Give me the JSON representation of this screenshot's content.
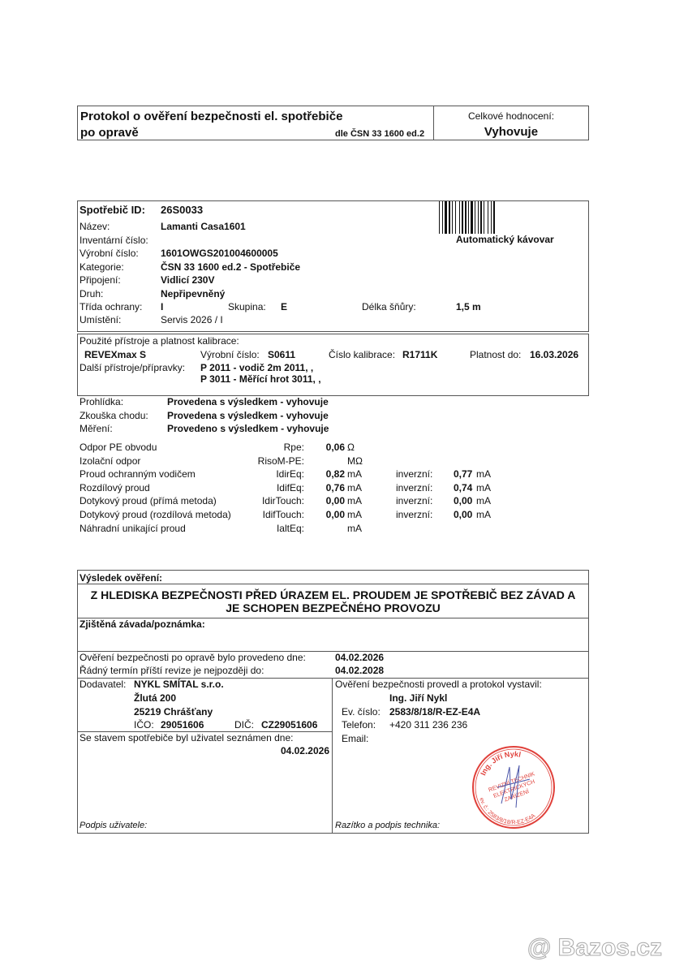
{
  "header": {
    "title_line1": "Protokol o ověření bezpečnosti el. spotřebiče",
    "title_line2": "po opravě",
    "norm": "dle ČSN 33 1600 ed.2",
    "rating_label": "Celkové hodnocení:",
    "rating_value": "Vyhovuje"
  },
  "device": {
    "id_label": "Spotřebič ID:",
    "id_value": "26S0033",
    "rows": [
      {
        "label": "Název:",
        "value": "Lamanti Casa1601"
      },
      {
        "label": "Inventární číslo:",
        "value": ""
      },
      {
        "label": "Výrobní číslo:",
        "value": "1601OWGS201004600005"
      },
      {
        "label": "Kategorie:",
        "value": "ČSN 33 1600 ed.2 - Spotřebiče"
      },
      {
        "label": "Připojení:",
        "value": "Vidlicí 230V"
      },
      {
        "label": "Druh:",
        "value": "Nepřipevněný"
      }
    ],
    "class_label": "Třída ochrany:",
    "class_value": "I",
    "group_label": "Skupina:",
    "group_value": "E",
    "cord_label": "Délka šňůry:",
    "cord_value": "1,5 m",
    "location_label": "Umístění:",
    "location_value": "Servis 2026 / I",
    "type": "Automatický kávovar"
  },
  "instruments": {
    "title": "Použité přístroje a platnost kalibrace:",
    "name": "REVEXmax S",
    "serial_label": "Výrobní číslo:",
    "serial_value": "S0611",
    "calib_label": "Číslo kalibrace:",
    "calib_value": "R1711K",
    "valid_label": "Platnost do:",
    "valid_value": "16.03.2026",
    "other_label": "Další přístroje/přípravky:",
    "other": [
      "P 2011 - vodič 2m 2011, ,",
      "P 3011 - Měřící hrot 3011, ,"
    ]
  },
  "checks": [
    {
      "label": "Prohlídka:",
      "value": "Provedena s výsledkem - vyhovuje"
    },
    {
      "label": "Zkouška chodu:",
      "value": "Provedena s výsledkem - vyhovuje"
    },
    {
      "label": "Měření:",
      "value": "Provedeno s výsledkem - vyhovuje"
    }
  ],
  "measurements": [
    {
      "label": "Odpor PE obvodu",
      "symbol": "Rpe:",
      "value": "0,06",
      "unit": "Ω",
      "inv_label": "",
      "inv_value": "",
      "inv_unit": ""
    },
    {
      "label": "Izolační odpor",
      "symbol": "RisoM-PE:",
      "value": "",
      "unit": "MΩ",
      "inv_label": "",
      "inv_value": "",
      "inv_unit": ""
    },
    {
      "label": "Proud ochranným vodičem",
      "symbol": "IdirEq:",
      "value": "0,82",
      "unit": "mA",
      "inv_label": "inverzní:",
      "inv_value": "0,77",
      "inv_unit": "mA"
    },
    {
      "label": "Rozdílový proud",
      "symbol": "IdifEq:",
      "value": "0,76",
      "unit": "mA",
      "inv_label": "inverzní:",
      "inv_value": "0,74",
      "inv_unit": "mA"
    },
    {
      "label": "Dotykový proud (přímá metoda)",
      "symbol": "IdirTouch:",
      "value": "0,00",
      "unit": "mA",
      "inv_label": "inverzní:",
      "inv_value": "0,00",
      "inv_unit": "mA"
    },
    {
      "label": "Dotykový proud (rozdílová metoda)",
      "symbol": "IdifTouch:",
      "value": "0,00",
      "unit": "mA",
      "inv_label": "inverzní:",
      "inv_value": "0,00",
      "inv_unit": "mA"
    },
    {
      "label": "Náhradní unikající proud",
      "symbol": "IaltEq:",
      "value": "",
      "unit": "mA",
      "inv_label": "",
      "inv_value": "",
      "inv_unit": ""
    }
  ],
  "result": {
    "title": "Výsledek ověření:",
    "line1": "Z HLEDISKA BEZPEČNOSTI PŘED ÚRAZEM EL. PROUDEM JE SPOTŘEBIČ BEZ ZÁVAD A",
    "line2": "JE SCHOPEN BEZPEČNÉHO PROVOZU",
    "defect_label": "Zjištěná závada/poznámka:",
    "done_label": "Ověření bezpečnosti po opravě bylo provedeno dne:",
    "done_value": "04.02.2026",
    "next_label": "Řádný termín příští revize je nejpozději do:",
    "next_value": "04.02.2028"
  },
  "supplier": {
    "label": "Dodavatel:",
    "name": "NYKL SMÍTAL s.r.o.",
    "street": "Žlutá 200",
    "city": "25219  Chrášťany",
    "ico_label": "IČO:",
    "ico": "29051606",
    "dic_label": "DIČ:",
    "dic": "CZ29051606"
  },
  "user": {
    "label": "Se stavem spotřebiče byl uživatel seznámen dne:",
    "date": "04.02.2026",
    "sign": "Podpis uživatele:"
  },
  "technician": {
    "label": "Ověření bezpečnosti provedl a protokol vystavil:",
    "name": "Ing. Jiří Nykl",
    "ev_label": "Ev. číslo:",
    "ev": "2583/8/18/R-EZ-E4A",
    "phone_label": "Telefon:",
    "phone": "+420 311 236 236",
    "email_label": "Email:",
    "sign": "Razítko a podpis technika:"
  },
  "stamp": {
    "top": "Ing. Jiří Nykl",
    "mid1": "REVIZNÍ TECHNIK",
    "mid2": "ELEKTRICKÝCH",
    "mid3": "ZAŘÍZENÍ",
    "bottom": "ev. č.: 2583/8/18/R-EZ-E4A",
    "color": "#e0403a"
  },
  "watermark": "@ Bazos.cz"
}
